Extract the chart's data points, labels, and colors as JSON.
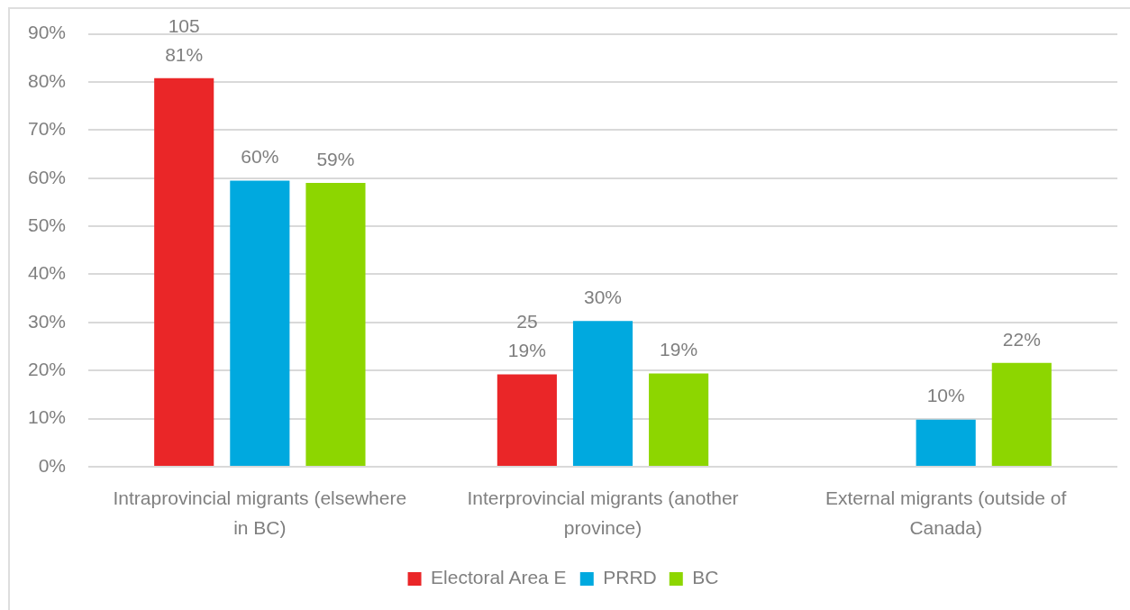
{
  "chart_data": {
    "type": "bar",
    "categories": [
      "Intraprovincial migrants (elsewhere in BC)",
      "Interprovincial migrants (another province)",
      "External migrants (outside of Canada)"
    ],
    "series": [
      {
        "name": "Electoral Area E",
        "color": "#ea2628",
        "values": [
          80.8,
          19.2,
          null
        ],
        "value_labels": [
          "105\n81%",
          "25\n19%",
          null
        ]
      },
      {
        "name": "PRRD",
        "color": "#00a9df",
        "values": [
          59.5,
          30.3,
          9.8
        ],
        "value_labels": [
          "60%",
          "30%",
          "10%"
        ]
      },
      {
        "name": "BC",
        "color": "#8dd600",
        "values": [
          59.0,
          19.4,
          21.6
        ],
        "value_labels": [
          "59%",
          "19%",
          "22%"
        ]
      }
    ],
    "ylim": [
      0,
      90
    ],
    "yticks": [
      {
        "value": 0,
        "label": "0%"
      },
      {
        "value": 10,
        "label": "10%"
      },
      {
        "value": 20,
        "label": "20%"
      },
      {
        "value": 30,
        "label": "30%"
      },
      {
        "value": 40,
        "label": "40%"
      },
      {
        "value": 50,
        "label": "50%"
      },
      {
        "value": 60,
        "label": "60%"
      },
      {
        "value": 70,
        "label": "70%"
      },
      {
        "value": 80,
        "label": "80%"
      },
      {
        "value": 90,
        "label": "90%"
      }
    ],
    "grid": "y",
    "legend": "bottom"
  }
}
